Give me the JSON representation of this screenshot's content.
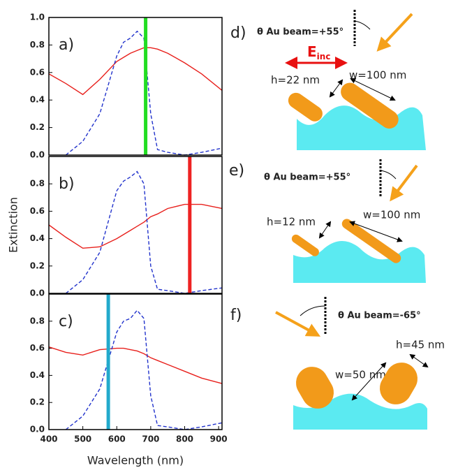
{
  "chart_data": [
    {
      "type": "line",
      "panel_label": "a)",
      "x": [
        400,
        450,
        500,
        550,
        600,
        620,
        640,
        660,
        680,
        700,
        720,
        750,
        800,
        850,
        910
      ],
      "series": [
        {
          "color": "#e8201c",
          "dash": false,
          "values": [
            0.59,
            0.52,
            0.44,
            0.55,
            0.68,
            0.71,
            0.74,
            0.76,
            0.78,
            0.78,
            0.77,
            0.74,
            0.67,
            0.59,
            0.47
          ]
        },
        {
          "color": "#2233cc",
          "dash": true,
          "values": [
            null,
            0.0,
            0.1,
            0.3,
            0.72,
            0.82,
            0.85,
            0.9,
            0.85,
            0.3,
            0.04,
            0.02,
            0.0,
            0.02,
            0.05
          ]
        }
      ],
      "laser_wavelength": 685,
      "laser_color": "#22dd22",
      "xlim": [
        400,
        910
      ],
      "ylim": [
        0,
        1.0
      ],
      "yticks": [
        {
          "value": 0,
          "label": "0.0"
        },
        0.2,
        0.4,
        0.6,
        0.8,
        {
          "value": 1,
          "label": "1.0"
        }
      ]
    },
    {
      "type": "line",
      "panel_label": "b)",
      "y_label": "Extinction",
      "x": [
        400,
        450,
        500,
        550,
        600,
        620,
        640,
        660,
        680,
        700,
        720,
        750,
        800,
        850,
        910
      ],
      "series": [
        {
          "color": "#e8201c",
          "dash": false,
          "values": [
            0.5,
            0.41,
            0.33,
            0.34,
            0.4,
            0.43,
            0.46,
            0.49,
            0.52,
            0.56,
            0.58,
            0.62,
            0.65,
            0.65,
            0.62
          ]
        },
        {
          "color": "#2233cc",
          "dash": true,
          "values": [
            null,
            0.0,
            0.1,
            0.3,
            0.75,
            0.82,
            0.85,
            0.89,
            0.8,
            0.2,
            0.03,
            0.02,
            0.0,
            0.02,
            0.04
          ]
        }
      ],
      "laser_wavelength": 815,
      "laser_color": "#ee2222",
      "xlim": [
        400,
        910
      ],
      "ylim": [
        0,
        1.0
      ],
      "yticks": [
        {
          "value": 0,
          "label": "0.0"
        },
        0.2,
        0.4,
        0.6,
        0.8
      ]
    },
    {
      "type": "line",
      "panel_label": "c)",
      "x_label": "Wavelength (nm)",
      "x": [
        400,
        450,
        500,
        550,
        600,
        620,
        640,
        660,
        680,
        700,
        720,
        750,
        800,
        850,
        910
      ],
      "series": [
        {
          "color": "#e8201c",
          "dash": false,
          "values": [
            0.61,
            0.57,
            0.55,
            0.59,
            0.6,
            0.6,
            0.59,
            0.58,
            0.56,
            0.53,
            0.51,
            0.48,
            0.43,
            0.38,
            0.34
          ]
        },
        {
          "color": "#2233cc",
          "dash": true,
          "values": [
            null,
            0.0,
            0.1,
            0.3,
            0.72,
            0.8,
            0.82,
            0.88,
            0.82,
            0.25,
            0.03,
            0.02,
            0.0,
            0.02,
            0.05
          ]
        }
      ],
      "laser_wavelength": 575,
      "laser_color": "#22aacc",
      "xlim": [
        400,
        910
      ],
      "ylim": [
        0,
        1.0
      ],
      "xticks": [
        400,
        500,
        600,
        700,
        800,
        900
      ],
      "yticks": [
        {
          "value": 0,
          "label": "0.0"
        },
        0.2,
        0.4,
        0.6,
        0.8
      ]
    }
  ],
  "diagrams": [
    {
      "label": "d)",
      "beam": "θ Au beam=+55°",
      "field": {
        "symbol": "E",
        "subscript": "inc"
      },
      "height": "h=22 nm",
      "width": "w=100 nm"
    },
    {
      "label": "e)",
      "beam": "θ Au beam=+55°",
      "height": "h=12 nm",
      "width": "w=100 nm"
    },
    {
      "label": "f)",
      "beam": "θ Au beam=-65°",
      "width": "w=50 nm",
      "height": "h=45 nm"
    }
  ]
}
